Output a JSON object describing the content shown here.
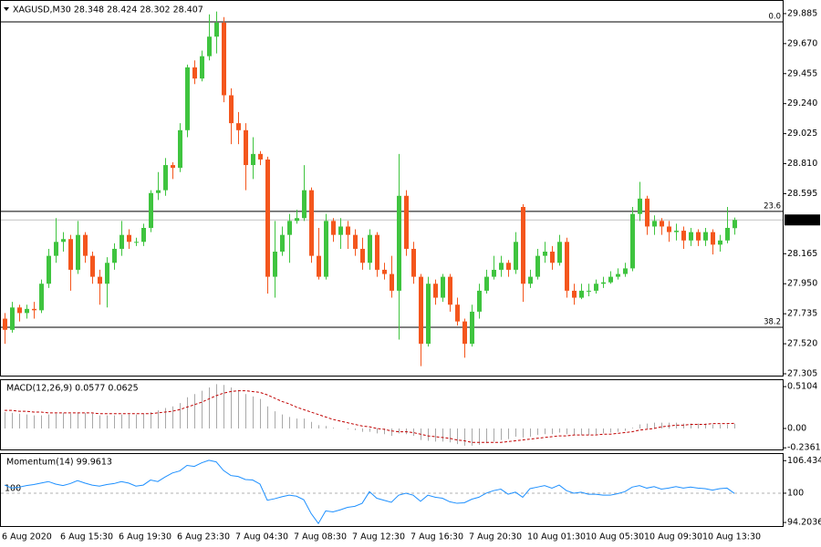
{
  "chart_data": [
    {
      "type": "candlestick",
      "title": "XAGUSD,M30 28.348 28.424 28.302 28.407",
      "categories": [
        "6 Aug 2020",
        null,
        null,
        null,
        null,
        null,
        null,
        null,
        "6 Aug 15:30",
        null,
        null,
        null,
        null,
        null,
        null,
        null,
        "6 Aug 19:30",
        null,
        null,
        null,
        null,
        null,
        null,
        null,
        "6 Aug 23:30",
        null,
        null,
        null,
        null,
        null,
        null,
        null,
        "7 Aug 04:30",
        null,
        null,
        null,
        null,
        null,
        null,
        null,
        "7 Aug 08:30",
        null,
        null,
        null,
        null,
        null,
        null,
        null,
        "7 Aug 12:30",
        null,
        null,
        null,
        null,
        null,
        null,
        null,
        "7 Aug 16:30",
        null,
        null,
        null,
        null,
        null,
        null,
        null,
        "7 Aug 20:30",
        null,
        null,
        null,
        null,
        null,
        null,
        null,
        "10 Aug 01:30",
        null,
        null,
        null,
        null,
        null,
        null,
        null,
        "10 Aug 05:30",
        null,
        null,
        null,
        null,
        null,
        null,
        null,
        "10 Aug 09:30",
        null,
        null,
        null,
        null,
        null,
        null,
        null,
        "10 Aug 13:30",
        null,
        null,
        null,
        null
      ],
      "open": [
        27.7,
        27.62,
        27.78,
        27.74,
        27.77,
        27.76,
        27.95,
        28.15,
        28.25,
        28.27,
        28.05,
        28.3,
        28.15,
        28.0,
        27.95,
        28.1,
        28.2,
        28.3,
        28.25,
        28.25,
        28.35,
        28.6,
        28.62,
        28.8,
        28.78,
        29.05,
        29.5,
        29.42,
        29.58,
        29.72,
        29.82,
        29.3,
        29.1,
        29.05,
        28.8,
        28.88,
        28.84,
        28.0,
        28.18,
        28.3,
        28.4,
        28.42,
        28.62,
        28.15,
        28.0,
        28.4,
        28.3,
        28.36,
        28.3,
        28.2,
        28.1,
        28.3,
        28.05,
        28.02,
        27.9,
        28.58,
        28.2,
        28.0,
        27.52,
        27.95,
        27.85,
        28.0,
        27.8,
        27.68,
        27.52,
        27.75,
        27.9,
        28.0,
        28.05,
        28.1,
        28.05,
        28.5,
        27.95,
        28.0,
        28.15,
        28.18,
        28.1,
        28.25,
        27.9,
        27.85,
        27.9,
        27.9,
        27.95,
        27.96,
        28.0,
        28.02,
        28.06,
        28.45,
        28.56,
        28.36,
        28.4,
        28.36,
        28.32,
        28.33,
        28.26,
        28.32,
        28.26,
        28.32,
        28.23,
        28.26,
        28.348
      ],
      "high": [
        27.74,
        27.82,
        27.8,
        27.8,
        27.82,
        27.98,
        28.2,
        28.42,
        28.32,
        28.3,
        28.4,
        28.32,
        28.18,
        28.05,
        28.14,
        28.24,
        28.4,
        28.34,
        28.28,
        28.38,
        28.62,
        28.75,
        28.85,
        28.82,
        29.1,
        29.52,
        29.55,
        29.62,
        29.88,
        29.9,
        29.86,
        29.35,
        29.18,
        29.1,
        29.0,
        28.9,
        28.86,
        28.4,
        28.36,
        28.45,
        28.48,
        28.8,
        28.64,
        28.35,
        28.45,
        28.42,
        28.42,
        28.4,
        28.34,
        28.28,
        28.34,
        28.32,
        28.1,
        28.15,
        28.88,
        28.62,
        28.25,
        28.02,
        28.0,
        27.98,
        28.02,
        28.02,
        27.85,
        27.7,
        27.8,
        27.95,
        28.05,
        28.15,
        28.15,
        28.12,
        28.32,
        28.52,
        28.05,
        28.2,
        28.25,
        28.22,
        28.3,
        28.28,
        27.95,
        27.95,
        27.95,
        27.98,
        28.0,
        28.04,
        28.06,
        28.1,
        28.5,
        28.68,
        28.58,
        28.44,
        28.42,
        28.4,
        28.38,
        28.36,
        28.35,
        28.34,
        28.35,
        28.34,
        28.3,
        28.5,
        28.424
      ],
      "low": [
        27.52,
        27.6,
        27.68,
        27.7,
        27.7,
        27.74,
        27.92,
        28.1,
        28.18,
        27.9,
        28.02,
        28.1,
        27.95,
        27.8,
        27.78,
        28.05,
        28.15,
        28.2,
        28.22,
        28.22,
        28.32,
        28.55,
        28.58,
        28.7,
        28.75,
        29.0,
        29.38,
        29.4,
        29.55,
        29.6,
        29.25,
        28.95,
        28.95,
        28.62,
        28.7,
        28.8,
        27.88,
        27.85,
        28.15,
        28.1,
        28.38,
        28.4,
        28.1,
        27.98,
        27.98,
        28.25,
        28.2,
        28.2,
        28.15,
        28.05,
        28.05,
        28.0,
        27.98,
        27.85,
        27.55,
        28.15,
        27.95,
        27.36,
        27.5,
        27.8,
        27.82,
        27.75,
        27.65,
        27.42,
        27.5,
        27.7,
        27.88,
        27.98,
        28.0,
        28.0,
        28.02,
        27.82,
        27.92,
        27.98,
        28.1,
        28.05,
        28.08,
        27.85,
        27.8,
        27.84,
        27.86,
        27.88,
        27.92,
        27.95,
        27.98,
        28.0,
        28.04,
        28.4,
        28.3,
        28.3,
        28.3,
        28.25,
        28.26,
        28.2,
        28.22,
        28.22,
        28.22,
        28.16,
        28.18,
        28.24,
        28.302
      ],
      "close": [
        27.62,
        27.78,
        27.74,
        27.77,
        27.76,
        27.95,
        28.15,
        28.25,
        28.27,
        28.05,
        28.3,
        28.15,
        28.0,
        27.95,
        28.1,
        28.2,
        28.3,
        28.25,
        28.25,
        28.35,
        28.6,
        28.62,
        28.8,
        28.78,
        29.05,
        29.5,
        29.42,
        29.58,
        29.72,
        29.82,
        29.3,
        29.1,
        29.05,
        28.8,
        28.88,
        28.84,
        28.0,
        28.18,
        28.3,
        28.4,
        28.42,
        28.62,
        28.15,
        28.0,
        28.4,
        28.3,
        28.36,
        28.3,
        28.2,
        28.1,
        28.3,
        28.05,
        28.02,
        27.9,
        28.58,
        28.2,
        28.0,
        27.52,
        27.95,
        27.85,
        28.0,
        27.8,
        27.68,
        27.52,
        27.75,
        27.9,
        28.0,
        28.05,
        28.1,
        28.05,
        28.25,
        27.95,
        28.0,
        28.15,
        28.18,
        28.1,
        28.25,
        27.9,
        27.85,
        27.9,
        27.9,
        27.95,
        27.96,
        28.0,
        28.02,
        28.06,
        28.45,
        28.56,
        28.36,
        28.4,
        28.36,
        28.32,
        28.33,
        28.26,
        28.32,
        28.26,
        28.32,
        28.23,
        28.26,
        28.35,
        28.407
      ],
      "up_color": "#3fc43f",
      "down_color": "#f4561d",
      "ylim": [
        27.292,
        29.976
      ],
      "yticks": [
        29.885,
        {
          "value": 29.67,
          "label": "29.670"
        },
        29.455,
        {
          "value": 29.24,
          "label": "29.240"
        },
        29.025,
        {
          "value": 28.81,
          "label": "28.810"
        },
        28.595,
        28.165,
        {
          "value": 27.95,
          "label": "27.950"
        },
        27.735,
        {
          "value": 27.52,
          "label": "27.520"
        },
        27.305
      ],
      "levels": [
        {
          "label": "0.0",
          "value": 29.826
        },
        {
          "label": "23.6",
          "value": 28.468
        },
        {
          "label": "38.2",
          "value": 27.638
        }
      ],
      "last": 28.407
    },
    {
      "type": "macd",
      "title": "MACD(12,26,9) 0.0577 0.0625",
      "histogram": [
        0.2,
        0.19,
        0.18,
        0.17,
        0.16,
        0.16,
        0.17,
        0.18,
        0.19,
        0.18,
        0.19,
        0.19,
        0.18,
        0.16,
        0.16,
        0.16,
        0.17,
        0.17,
        0.17,
        0.18,
        0.2,
        0.22,
        0.25,
        0.27,
        0.31,
        0.38,
        0.42,
        0.46,
        0.5,
        0.54,
        0.53,
        0.5,
        0.47,
        0.42,
        0.39,
        0.36,
        0.27,
        0.21,
        0.17,
        0.14,
        0.12,
        0.12,
        0.08,
        0.04,
        0.03,
        0.01,
        0.0,
        -0.01,
        -0.02,
        -0.04,
        -0.04,
        -0.06,
        -0.07,
        -0.09,
        -0.06,
        -0.07,
        -0.09,
        -0.14,
        -0.15,
        -0.16,
        -0.16,
        -0.17,
        -0.19,
        -0.21,
        -0.21,
        -0.2,
        -0.18,
        -0.16,
        -0.14,
        -0.13,
        -0.1,
        -0.11,
        -0.1,
        -0.08,
        -0.07,
        -0.07,
        -0.05,
        -0.07,
        -0.08,
        -0.08,
        -0.08,
        -0.07,
        -0.06,
        -0.05,
        -0.04,
        -0.03,
        0.01,
        0.05,
        0.06,
        0.07,
        0.07,
        0.07,
        0.07,
        0.06,
        0.06,
        0.06,
        0.06,
        0.05,
        0.05,
        0.05,
        0.0577
      ],
      "signal": [
        0.22,
        0.22,
        0.21,
        0.21,
        0.2,
        0.2,
        0.19,
        0.19,
        0.19,
        0.19,
        0.19,
        0.19,
        0.19,
        0.18,
        0.18,
        0.18,
        0.18,
        0.18,
        0.18,
        0.18,
        0.18,
        0.19,
        0.2,
        0.21,
        0.23,
        0.26,
        0.29,
        0.32,
        0.36,
        0.4,
        0.43,
        0.45,
        0.46,
        0.46,
        0.45,
        0.44,
        0.41,
        0.37,
        0.33,
        0.3,
        0.26,
        0.23,
        0.2,
        0.17,
        0.14,
        0.11,
        0.09,
        0.07,
        0.05,
        0.03,
        0.02,
        0.0,
        -0.01,
        -0.03,
        -0.04,
        -0.04,
        -0.05,
        -0.07,
        -0.09,
        -0.1,
        -0.11,
        -0.12,
        -0.14,
        -0.15,
        -0.17,
        -0.17,
        -0.17,
        -0.17,
        -0.17,
        -0.16,
        -0.15,
        -0.14,
        -0.13,
        -0.12,
        -0.11,
        -0.1,
        -0.09,
        -0.09,
        -0.08,
        -0.08,
        -0.08,
        -0.08,
        -0.07,
        -0.07,
        -0.06,
        -0.05,
        -0.04,
        -0.02,
        -0.01,
        0.0,
        0.02,
        0.03,
        0.04,
        0.04,
        0.05,
        0.05,
        0.05,
        0.06,
        0.06,
        0.06,
        0.0625
      ],
      "histogram_color": "#a9a9a9",
      "signal_color": "#c00000",
      "ylim": [
        -0.267,
        0.6
      ],
      "yticks": [
        0.5104,
        {
          "value": 0,
          "label": "0.00"
        },
        -0.2361
      ]
    },
    {
      "type": "momentum",
      "title": "Momentum(14) 99.9613",
      "values": [
        101.6,
        101.0,
        101.2,
        101.5,
        101.7,
        102.0,
        102.3,
        101.8,
        101.5,
        101.9,
        102.5,
        102.0,
        101.6,
        101.4,
        101.7,
        101.9,
        102.3,
        102.0,
        101.4,
        101.6,
        102.6,
        102.3,
        103.2,
        104.0,
        104.4,
        105.5,
        105.3,
        106.0,
        106.5,
        106.2,
        104.5,
        103.5,
        103.3,
        102.7,
        102.6,
        101.8,
        98.6,
        98.9,
        99.3,
        99.6,
        99.4,
        98.7,
        96.0,
        94.0,
        96.5,
        96.3,
        96.7,
        97.2,
        97.4,
        98.0,
        100.3,
        99.0,
        98.6,
        98.2,
        99.6,
        100.0,
        99.6,
        98.4,
        99.6,
        99.2,
        99.0,
        98.3,
        98.0,
        98.1,
        98.8,
        99.2,
        100.0,
        100.5,
        100.8,
        99.8,
        100.2,
        99.2,
        100.9,
        101.2,
        101.5,
        101.0,
        101.6,
        100.5,
        100.0,
        100.2,
        99.8,
        99.8,
        99.6,
        99.6,
        99.9,
        100.3,
        101.2,
        101.5,
        101.0,
        101.3,
        100.8,
        101.0,
        101.3,
        101.0,
        101.2,
        101.0,
        100.9,
        100.6,
        100.9,
        101.0,
        99.9613
      ],
      "color": "#1e90ff",
      "level": 100,
      "ylim": [
        93.5,
        107.75
      ],
      "yticks": [
        106.4345,
        100,
        94.2036
      ]
    }
  ]
}
